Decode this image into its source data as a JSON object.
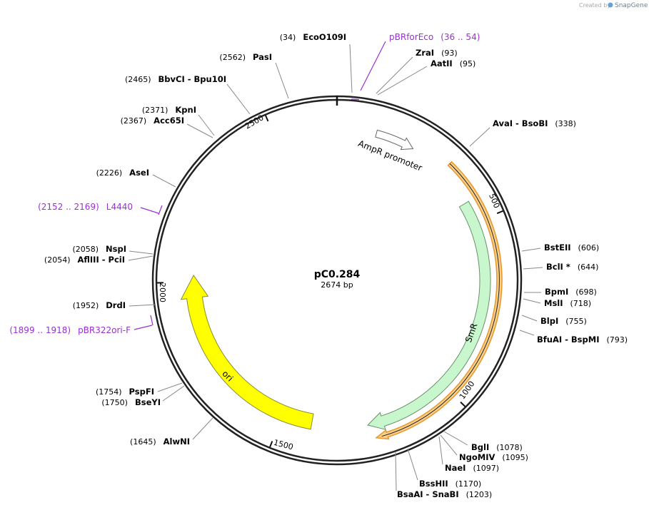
{
  "header": {
    "created_by": "Created by",
    "brand": "SnapGene"
  },
  "plasmid": {
    "name": "pC0.284",
    "length": "2674 bp"
  },
  "sites": [
    {
      "name": "EcoO109I",
      "position": "(34)"
    },
    {
      "name": "PasI",
      "position": "(2562)"
    },
    {
      "name": "BbvCI  - Bpu10I",
      "position": "(2465)"
    },
    {
      "name": "KpnI",
      "position": "(2371)"
    },
    {
      "name": "Acc65I",
      "position": "(2367)"
    },
    {
      "name": "AseI",
      "position": "(2226)"
    },
    {
      "name": "NspI",
      "position": "(2058)"
    },
    {
      "name": "AflIII  - PciI",
      "position": "(2054)"
    },
    {
      "name": "DrdI",
      "position": "(1952)"
    },
    {
      "name": "PspFI",
      "position": "(1754)"
    },
    {
      "name": "BseYI",
      "position": "(1750)"
    },
    {
      "name": "AlwNI",
      "position": "(1645)"
    },
    {
      "name": "ZraI",
      "position": "(93)"
    },
    {
      "name": "AatII",
      "position": "(95)"
    },
    {
      "name": "AvaI  - BsoBI",
      "position": "(338)"
    },
    {
      "name": "BstEII",
      "position": "(606)"
    },
    {
      "name": "BclI *",
      "position": "(644)"
    },
    {
      "name": "BpmI",
      "position": "(698)"
    },
    {
      "name": "MslI",
      "position": "(718)"
    },
    {
      "name": "BlpI",
      "position": "(755)"
    },
    {
      "name": "BfuAI  - BspMI",
      "position": "(793)"
    },
    {
      "name": "BglI",
      "position": "(1078)"
    },
    {
      "name": "NgoMIV",
      "position": "(1095)"
    },
    {
      "name": "NaeI",
      "position": "(1097)"
    },
    {
      "name": "BssHII",
      "position": "(1170)"
    },
    {
      "name": "BsaAI  - SnaBI",
      "position": "(1203)"
    }
  ],
  "primers": [
    {
      "name": "pBRforEco",
      "range": "(36 .. 54)"
    },
    {
      "name": "L4440",
      "range": "(2152 .. 2169)"
    },
    {
      "name": "pBR322ori-F",
      "range": "(1899 .. 1918)"
    }
  ],
  "features": [
    {
      "name": "AmpR promoter"
    },
    {
      "name": "SmR"
    },
    {
      "name": "ori"
    }
  ],
  "ticks": [
    "500",
    "1000",
    "1500",
    "2000",
    "2500"
  ]
}
